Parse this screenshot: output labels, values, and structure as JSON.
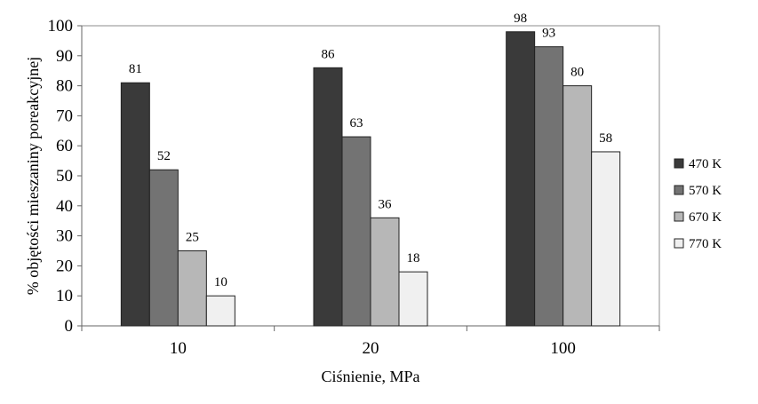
{
  "chart_data": {
    "type": "bar",
    "categories": [
      "10",
      "20",
      "100"
    ],
    "series": [
      {
        "name": "470 K",
        "values": [
          81,
          86,
          98
        ],
        "color": "#3a3a3a"
      },
      {
        "name": "570 K",
        "values": [
          52,
          63,
          93
        ],
        "color": "#737373"
      },
      {
        "name": "670 K",
        "values": [
          25,
          36,
          80
        ],
        "color": "#b7b7b7"
      },
      {
        "name": "770 K",
        "values": [
          10,
          18,
          58
        ],
        "color": "#f0f0f0"
      }
    ],
    "xlabel": "Ciśnienie, MPa",
    "ylabel": "% objętości mieszaniny poreakcyjnej",
    "ylim": [
      0,
      100
    ],
    "yticks": [
      0,
      10,
      20,
      30,
      40,
      50,
      60,
      70,
      80,
      90,
      100
    ],
    "grid": false,
    "legend_position": "right"
  }
}
